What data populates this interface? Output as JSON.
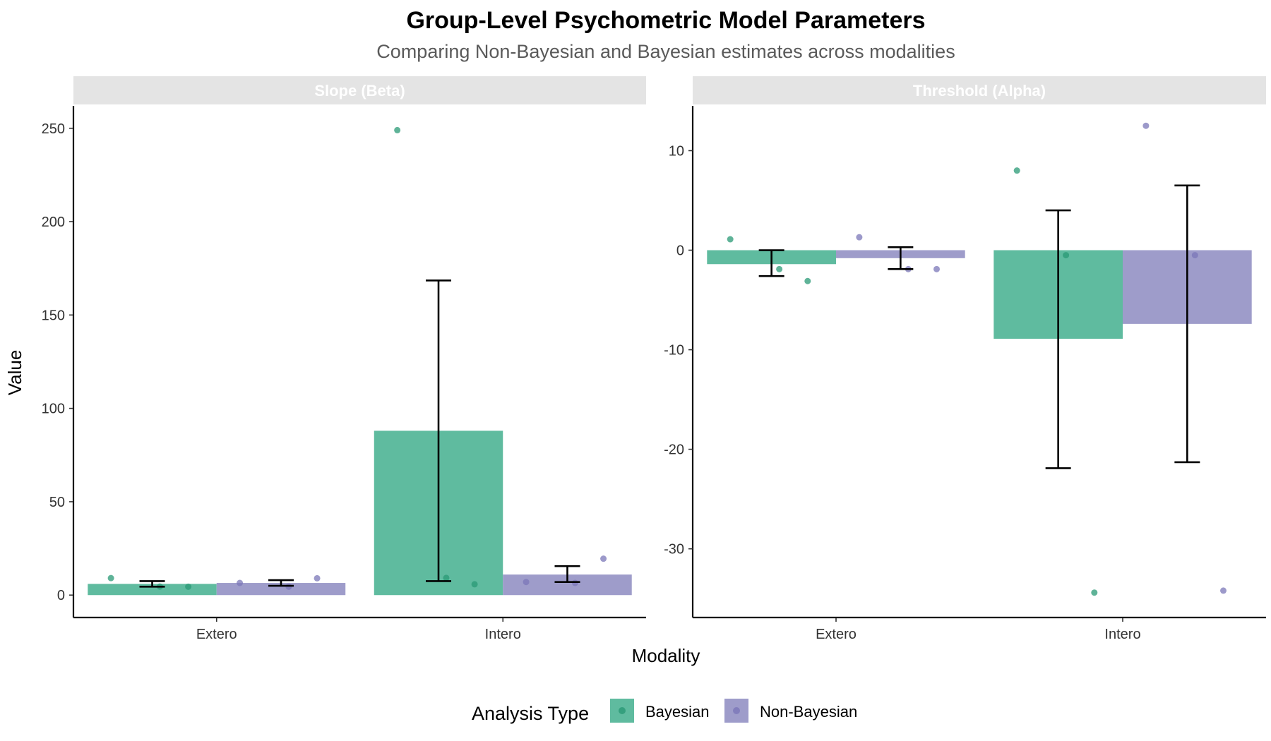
{
  "title": "Group-Level Psychometric Model Parameters",
  "subtitle": "Comparing Non-Bayesian and Bayesian estimates across modalities",
  "colors": {
    "Bayesian": "#5fbb9f",
    "Non-Bayesian": "#9e9cca",
    "strip_bg": "#e4e4e4"
  },
  "chart_data": [
    {
      "type": "bar",
      "panel": "Slope (Beta)",
      "categories": [
        "Extero",
        "Intero"
      ],
      "xlabel": "Modality",
      "ylabel": "Value",
      "ylim": [
        -12,
        262
      ],
      "yticks": [
        0,
        50,
        100,
        150,
        200,
        250
      ],
      "series": [
        {
          "name": "Bayesian",
          "values": [
            6,
            88
          ],
          "error": [
            [
              4.5,
              7.5
            ],
            [
              7.5,
              168.5
            ]
          ],
          "points": [
            [
              9.1,
              4.6,
              4.5
            ],
            [
              249,
              9.2,
              5.8
            ]
          ]
        },
        {
          "name": "Non-Bayesian",
          "values": [
            6.5,
            11
          ],
          "error": [
            [
              5,
              8
            ],
            [
              7,
              15.5
            ]
          ],
          "points": [
            [
              6.5,
              4.5,
              9.0
            ],
            [
              7.0,
              6.5,
              19.5
            ]
          ]
        }
      ]
    },
    {
      "type": "bar",
      "panel": "Threshold (Alpha)",
      "categories": [
        "Extero",
        "Intero"
      ],
      "xlabel": "Modality",
      "ylabel": "Value",
      "ylim": [
        -36.9,
        14.5
      ],
      "yticks": [
        10,
        0,
        -10,
        -20,
        -30
      ],
      "series": [
        {
          "name": "Bayesian",
          "values": [
            -1.4,
            -8.9
          ],
          "error": [
            [
              -2.6,
              0
            ],
            [
              -21.9,
              4.0
            ]
          ],
          "points": [
            [
              1.1,
              -1.9,
              -3.1
            ],
            [
              8.0,
              -0.5,
              -34.4
            ]
          ]
        },
        {
          "name": "Non-Bayesian",
          "values": [
            -0.8,
            -7.4
          ],
          "error": [
            [
              -1.9,
              0.3
            ],
            [
              -21.3,
              6.5
            ]
          ],
          "points": [
            [
              1.3,
              -1.9,
              -1.9
            ],
            [
              12.5,
              -0.5,
              -34.2
            ]
          ]
        }
      ]
    }
  ],
  "legend": {
    "title": "Analysis Type",
    "items": [
      {
        "label": "Bayesian",
        "color": "#5fbb9f"
      },
      {
        "label": "Non-Bayesian",
        "color": "#9e9cca"
      }
    ]
  }
}
